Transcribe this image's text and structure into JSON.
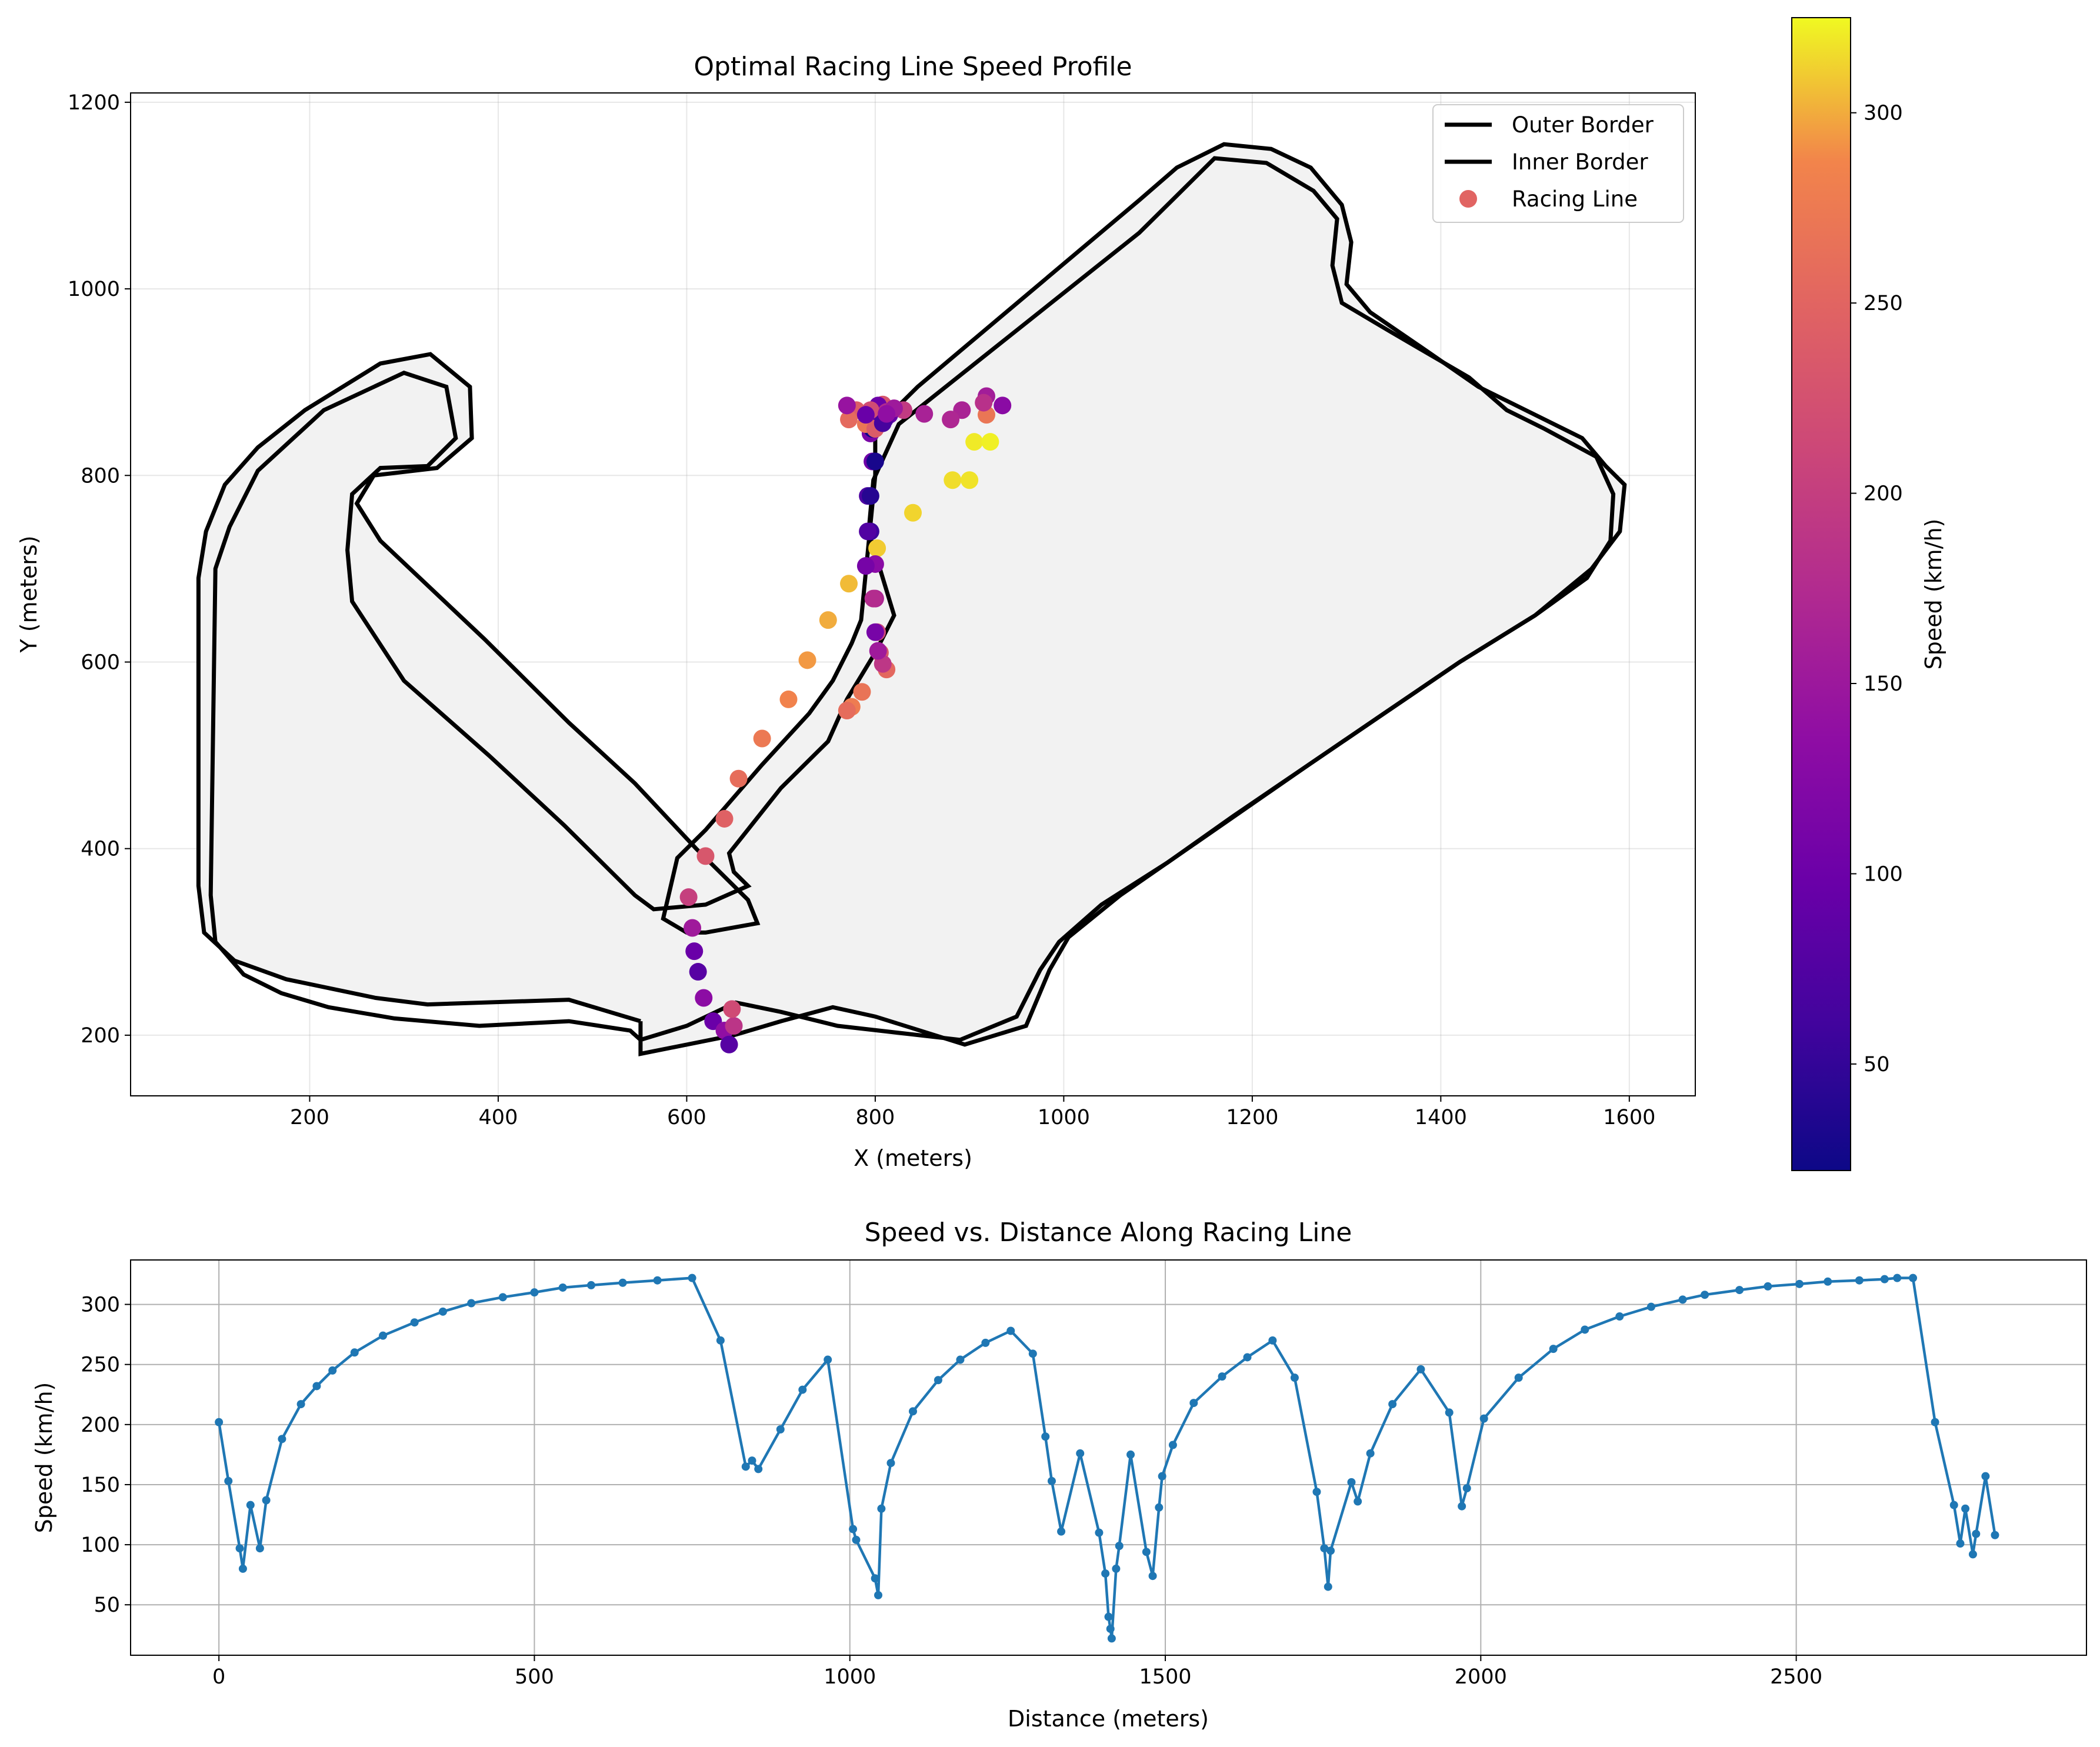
{
  "chart_data": [
    {
      "type": "scatter",
      "title": "Optimal Racing Line Speed Profile",
      "xlabel": "X (meters)",
      "ylabel": "Y (meters)",
      "xlim": [
        10,
        1670
      ],
      "ylim": [
        135,
        1210
      ],
      "xticks": [
        200,
        400,
        600,
        800,
        1000,
        1200,
        1400,
        1600
      ],
      "yticks": [
        200,
        400,
        600,
        800,
        1000,
        1200
      ],
      "grid": true,
      "legend": {
        "position": "top-right",
        "entries": [
          "Outer Border",
          "Inner Border",
          "Racing Line"
        ]
      },
      "colorbar": {
        "label": "Speed (km/h)",
        "colormap": "plasma",
        "range": [
          22,
          325
        ],
        "ticks": [
          50,
          100,
          150,
          200,
          250,
          300
        ]
      },
      "track_fill_color": "#f2f2f2",
      "outer_border": [
        [
          551,
          215
        ],
        [
          475,
          238
        ],
        [
          325,
          233
        ],
        [
          270,
          240
        ],
        [
          175,
          260
        ],
        [
          120,
          280
        ],
        [
          88,
          310
        ],
        [
          82,
          360
        ],
        [
          82,
          690
        ],
        [
          90,
          740
        ],
        [
          110,
          790
        ],
        [
          145,
          830
        ],
        [
          195,
          870
        ],
        [
          275,
          920
        ],
        [
          328,
          930
        ],
        [
          370,
          895
        ],
        [
          372,
          840
        ],
        [
          335,
          808
        ],
        [
          268,
          800
        ],
        [
          250,
          770
        ],
        [
          275,
          730
        ],
        [
          385,
          625
        ],
        [
          475,
          535
        ],
        [
          545,
          470
        ],
        [
          610,
          400
        ],
        [
          665,
          345
        ],
        [
          675,
          320
        ],
        [
          620,
          310
        ],
        [
          600,
          310
        ],
        [
          575,
          325
        ],
        [
          590,
          390
        ],
        [
          620,
          420
        ],
        [
          680,
          490
        ],
        [
          730,
          545
        ],
        [
          755,
          580
        ],
        [
          775,
          620
        ],
        [
          785,
          645
        ],
        [
          800,
          800
        ],
        [
          800,
          850
        ],
        [
          845,
          895
        ],
        [
          1080,
          1095
        ],
        [
          1120,
          1130
        ],
        [
          1170,
          1155
        ],
        [
          1220,
          1150
        ],
        [
          1262,
          1130
        ],
        [
          1295,
          1090
        ],
        [
          1305,
          1050
        ],
        [
          1300,
          1005
        ],
        [
          1325,
          975
        ],
        [
          1390,
          930
        ],
        [
          1440,
          895
        ],
        [
          1550,
          840
        ],
        [
          1575,
          810
        ],
        [
          1595,
          790
        ],
        [
          1590,
          740
        ],
        [
          1560,
          700
        ],
        [
          1500,
          650
        ],
        [
          1420,
          600
        ],
        [
          1340,
          545
        ],
        [
          1260,
          490
        ],
        [
          1160,
          420
        ],
        [
          1060,
          350
        ],
        [
          1005,
          305
        ],
        [
          985,
          270
        ],
        [
          960,
          210
        ],
        [
          895,
          190
        ],
        [
          800,
          220
        ],
        [
          755,
          230
        ],
        [
          700,
          215
        ],
        [
          650,
          200
        ],
        [
          551,
          180
        ]
      ],
      "inner_border": [
        [
          551,
          195
        ],
        [
          600,
          210
        ],
        [
          652,
          235
        ],
        [
          700,
          225
        ],
        [
          760,
          210
        ],
        [
          890,
          195
        ],
        [
          950,
          220
        ],
        [
          975,
          270
        ],
        [
          995,
          300
        ],
        [
          1040,
          340
        ],
        [
          1110,
          385
        ],
        [
          1180,
          435
        ],
        [
          1260,
          490
        ],
        [
          1340,
          545
        ],
        [
          1420,
          600
        ],
        [
          1500,
          650
        ],
        [
          1555,
          690
        ],
        [
          1580,
          730
        ],
        [
          1583,
          780
        ],
        [
          1565,
          820
        ],
        [
          1510,
          850
        ],
        [
          1470,
          870
        ],
        [
          1430,
          905
        ],
        [
          1345,
          955
        ],
        [
          1295,
          985
        ],
        [
          1285,
          1025
        ],
        [
          1290,
          1075
        ],
        [
          1265,
          1105
        ],
        [
          1215,
          1135
        ],
        [
          1160,
          1140
        ],
        [
          1120,
          1100
        ],
        [
          1080,
          1060
        ],
        [
          825,
          855
        ],
        [
          798,
          795
        ],
        [
          793,
          740
        ],
        [
          808,
          690
        ],
        [
          820,
          650
        ],
        [
          800,
          610
        ],
        [
          770,
          560
        ],
        [
          750,
          515
        ],
        [
          700,
          465
        ],
        [
          645,
          395
        ],
        [
          650,
          375
        ],
        [
          665,
          360
        ],
        [
          620,
          340
        ],
        [
          565,
          335
        ],
        [
          545,
          350
        ],
        [
          520,
          375
        ],
        [
          470,
          425
        ],
        [
          390,
          500
        ],
        [
          300,
          580
        ],
        [
          245,
          665
        ],
        [
          240,
          720
        ],
        [
          245,
          780
        ],
        [
          275,
          808
        ],
        [
          325,
          810
        ],
        [
          355,
          840
        ],
        [
          345,
          895
        ],
        [
          300,
          910
        ],
        [
          215,
          870
        ],
        [
          145,
          805
        ],
        [
          115,
          745
        ],
        [
          100,
          700
        ],
        [
          95,
          350
        ],
        [
          100,
          300
        ],
        [
          130,
          265
        ],
        [
          170,
          245
        ],
        [
          220,
          230
        ],
        [
          290,
          218
        ],
        [
          380,
          210
        ],
        [
          475,
          215
        ],
        [
          540,
          205
        ]
      ],
      "racing_line": [
        {
          "x": 602,
          "y": 348,
          "speed": 202
        },
        {
          "x": 606,
          "y": 315,
          "speed": 153
        },
        {
          "x": 608,
          "y": 290,
          "speed": 98
        },
        {
          "x": 612,
          "y": 268,
          "speed": 80
        },
        {
          "x": 618,
          "y": 240,
          "speed": 133
        },
        {
          "x": 628,
          "y": 215,
          "speed": 98
        },
        {
          "x": 640,
          "y": 205,
          "speed": 137
        },
        {
          "x": 645,
          "y": 190,
          "speed": 80
        },
        {
          "x": 650,
          "y": 210,
          "speed": 188
        },
        {
          "x": 648,
          "y": 228,
          "speed": 217
        },
        {
          "x": 620,
          "y": 392,
          "speed": 232
        },
        {
          "x": 640,
          "y": 432,
          "speed": 245
        },
        {
          "x": 655,
          "y": 475,
          "speed": 260
        },
        {
          "x": 680,
          "y": 518,
          "speed": 274
        },
        {
          "x": 708,
          "y": 560,
          "speed": 285
        },
        {
          "x": 728,
          "y": 602,
          "speed": 294
        },
        {
          "x": 750,
          "y": 645,
          "speed": 300
        },
        {
          "x": 772,
          "y": 684,
          "speed": 305
        },
        {
          "x": 802,
          "y": 722,
          "speed": 310
        },
        {
          "x": 840,
          "y": 760,
          "speed": 313
        },
        {
          "x": 882,
          "y": 795,
          "speed": 316
        },
        {
          "x": 900,
          "y": 795,
          "speed": 318
        },
        {
          "x": 905,
          "y": 836,
          "speed": 320
        },
        {
          "x": 922,
          "y": 836,
          "speed": 322
        },
        {
          "x": 918,
          "y": 865,
          "speed": 270
        },
        {
          "x": 892,
          "y": 870,
          "speed": 165
        },
        {
          "x": 880,
          "y": 860,
          "speed": 170
        },
        {
          "x": 852,
          "y": 866,
          "speed": 163
        },
        {
          "x": 830,
          "y": 870,
          "speed": 196
        },
        {
          "x": 808,
          "y": 876,
          "speed": 230
        },
        {
          "x": 800,
          "y": 870,
          "speed": 254
        },
        {
          "x": 795,
          "y": 845,
          "speed": 113
        },
        {
          "x": 797,
          "y": 815,
          "speed": 103
        },
        {
          "x": 792,
          "y": 778,
          "speed": 72
        },
        {
          "x": 795,
          "y": 740,
          "speed": 58
        },
        {
          "x": 800,
          "y": 705,
          "speed": 130
        },
        {
          "x": 800,
          "y": 668,
          "speed": 168
        },
        {
          "x": 802,
          "y": 632,
          "speed": 211
        },
        {
          "x": 805,
          "y": 610,
          "speed": 237
        },
        {
          "x": 812,
          "y": 592,
          "speed": 254
        },
        {
          "x": 786,
          "y": 568,
          "speed": 268
        },
        {
          "x": 775,
          "y": 552,
          "speed": 278
        },
        {
          "x": 770,
          "y": 548,
          "speed": 259
        },
        {
          "x": 808,
          "y": 598,
          "speed": 190
        },
        {
          "x": 803,
          "y": 612,
          "speed": 153
        },
        {
          "x": 800,
          "y": 632,
          "speed": 111
        },
        {
          "x": 798,
          "y": 668,
          "speed": 176
        },
        {
          "x": 790,
          "y": 703,
          "speed": 110
        },
        {
          "x": 792,
          "y": 740,
          "speed": 76
        },
        {
          "x": 795,
          "y": 778,
          "speed": 40
        },
        {
          "x": 800,
          "y": 815,
          "speed": 30
        },
        {
          "x": 797,
          "y": 850,
          "speed": 22
        },
        {
          "x": 798,
          "y": 868,
          "speed": 80
        },
        {
          "x": 803,
          "y": 875,
          "speed": 99
        },
        {
          "x": 812,
          "y": 868,
          "speed": 175
        },
        {
          "x": 815,
          "y": 865,
          "speed": 94
        },
        {
          "x": 810,
          "y": 860,
          "speed": 74
        },
        {
          "x": 935,
          "y": 875,
          "speed": 131
        },
        {
          "x": 918,
          "y": 885,
          "speed": 157
        },
        {
          "x": 915,
          "y": 878,
          "speed": 183
        },
        {
          "x": 795,
          "y": 870,
          "speed": 218
        },
        {
          "x": 780,
          "y": 870,
          "speed": 240
        },
        {
          "x": 772,
          "y": 860,
          "speed": 256
        },
        {
          "x": 790,
          "y": 855,
          "speed": 270
        },
        {
          "x": 800,
          "y": 850,
          "speed": 239
        },
        {
          "x": 770,
          "y": 875,
          "speed": 144
        },
        {
          "x": 790,
          "y": 865,
          "speed": 97
        },
        {
          "x": 808,
          "y": 856,
          "speed": 65
        },
        {
          "x": 820,
          "y": 872,
          "speed": 152
        },
        {
          "x": 812,
          "y": 866,
          "speed": 137
        }
      ]
    },
    {
      "type": "line",
      "title": "Speed vs. Distance Along Racing Line",
      "xlabel": "Distance (meters)",
      "ylabel": "Speed (km/h)",
      "xlim": [
        -140,
        2960
      ],
      "ylim": [
        8,
        337
      ],
      "xticks": [
        0,
        500,
        1000,
        1500,
        2000,
        2500
      ],
      "yticks": [
        50,
        100,
        150,
        200,
        250,
        300
      ],
      "grid": true,
      "line_color": "#1f77b4",
      "x": [
        0,
        15,
        33,
        38,
        50,
        65,
        75,
        100,
        130,
        155,
        180,
        215,
        260,
        310,
        355,
        400,
        450,
        500,
        545,
        590,
        640,
        695,
        750,
        795,
        835,
        845,
        855,
        890,
        925,
        965,
        1005,
        1010,
        1040,
        1045,
        1050,
        1065,
        1100,
        1140,
        1175,
        1215,
        1255,
        1290,
        1310,
        1320,
        1335,
        1365,
        1395,
        1405,
        1410,
        1413,
        1415,
        1422,
        1427,
        1445,
        1470,
        1480,
        1490,
        1495,
        1512,
        1545,
        1590,
        1630,
        1670,
        1705,
        1740,
        1752,
        1758,
        1762,
        1795,
        1805,
        1825,
        1860,
        1905,
        1950,
        1970,
        1978,
        2005,
        2060,
        2115,
        2165,
        2220,
        2270,
        2320,
        2355,
        2410,
        2455,
        2505,
        2550,
        2600,
        2640,
        2660,
        2685,
        2720,
        2750,
        2760,
        2768,
        2780,
        2785,
        2800,
        2815
      ],
      "y": [
        202,
        153,
        97,
        80,
        133,
        97,
        137,
        188,
        217,
        232,
        245,
        260,
        274,
        285,
        294,
        301,
        306,
        310,
        314,
        316,
        318,
        320,
        322,
        270,
        165,
        170,
        163,
        196,
        229,
        254,
        113,
        104,
        72,
        58,
        130,
        168,
        211,
        237,
        254,
        268,
        278,
        259,
        190,
        153,
        111,
        176,
        110,
        76,
        40,
        30,
        22,
        80,
        99,
        175,
        94,
        74,
        131,
        157,
        183,
        218,
        240,
        256,
        270,
        239,
        144,
        97,
        65,
        95,
        152,
        136,
        176,
        217,
        246,
        210,
        132,
        147,
        205,
        239,
        263,
        279,
        290,
        298,
        304,
        308,
        312,
        315,
        317,
        319,
        320,
        321,
        322,
        322,
        202,
        133,
        101,
        130,
        92,
        109,
        157,
        108
      ]
    }
  ]
}
